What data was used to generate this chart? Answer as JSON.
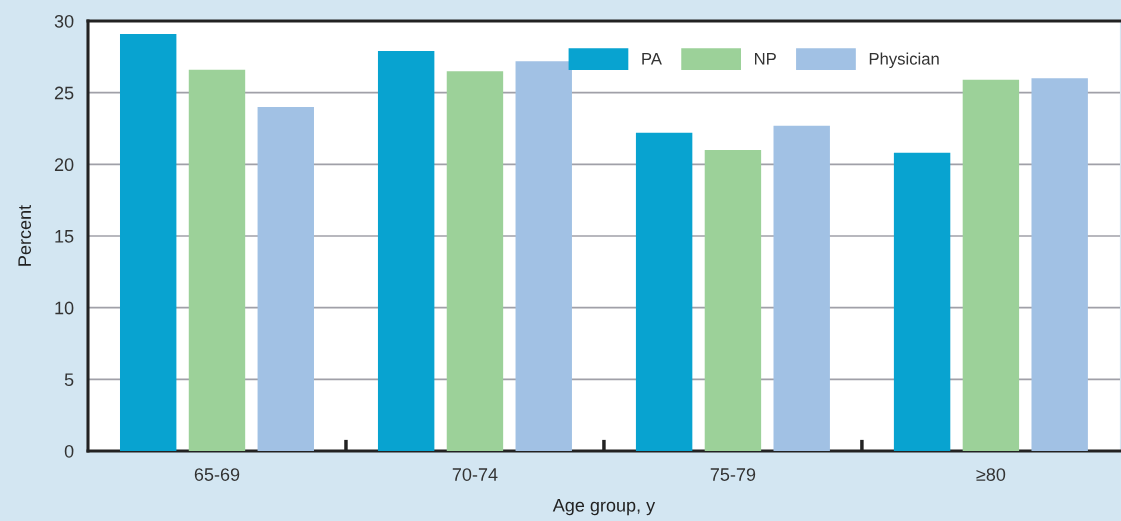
{
  "chart_data": {
    "type": "bar",
    "xlabel": "Age group, y",
    "ylabel": "Percent",
    "categories": [
      "65-69",
      "70-74",
      "75-79",
      "≥80"
    ],
    "series": [
      {
        "name": "PA",
        "color": "#08a3d0",
        "values": [
          29.1,
          27.9,
          22.2,
          20.8
        ]
      },
      {
        "name": "NP",
        "color": "#9cd199",
        "values": [
          26.6,
          26.5,
          21.0,
          25.9
        ]
      },
      {
        "name": "Physician",
        "color": "#a1c1e4",
        "values": [
          24.0,
          27.2,
          22.7,
          26.0
        ]
      }
    ],
    "ylim": [
      0,
      30
    ],
    "yticks": [
      0,
      5,
      10,
      15,
      20,
      25,
      30
    ],
    "grid": "y",
    "legend": "top right"
  }
}
